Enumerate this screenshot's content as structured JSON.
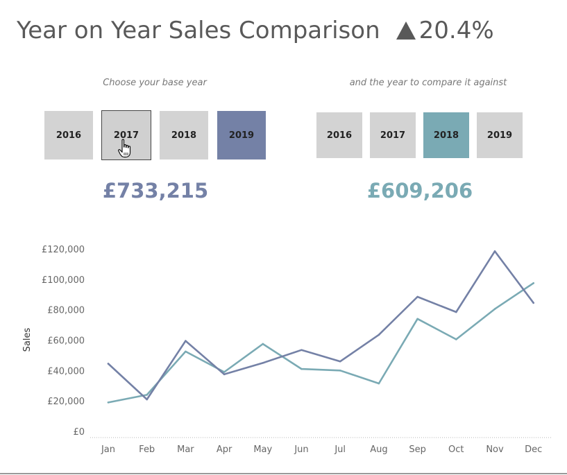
{
  "header": {
    "title": "Year on Year Sales Comparison",
    "change_icon": "triangle-up-icon",
    "change_value": "20.4%"
  },
  "base_selector": {
    "caption": "Choose your base year",
    "options": [
      "2016",
      "2017",
      "2018",
      "2019"
    ],
    "selected": "2019",
    "hovered": "2017",
    "total": "£733,215"
  },
  "compare_selector": {
    "caption": "and the year to compare it against",
    "options": [
      "2016",
      "2017",
      "2018",
      "2019"
    ],
    "selected": "2018",
    "total": "£609,206"
  },
  "colors": {
    "base": "#7481a6",
    "compare": "#7aaab4",
    "button": "#d3d3d3",
    "title": "#595959"
  },
  "chart_data": {
    "type": "line",
    "title": "",
    "xlabel": "",
    "ylabel": "Sales",
    "categories": [
      "Jan",
      "Feb",
      "Mar",
      "Apr",
      "May",
      "Jun",
      "Jul",
      "Aug",
      "Sep",
      "Oct",
      "Nov",
      "Dec"
    ],
    "ylim": [
      0,
      130000
    ],
    "yticks": [
      0,
      20000,
      40000,
      60000,
      80000,
      100000,
      120000
    ],
    "ytick_labels": [
      "£0",
      "£20,000",
      "£40,000",
      "£60,000",
      "£80,000",
      "£100,000",
      "£120,000"
    ],
    "grid": false,
    "series": [
      {
        "year": "2019",
        "role": "base",
        "color": "#7481a6",
        "values": [
          44500,
          21000,
          59500,
          37500,
          45000,
          53500,
          46000,
          63500,
          88500,
          78500,
          118500,
          84500
        ]
      },
      {
        "year": "2018",
        "role": "compare",
        "color": "#7aaab4",
        "values": [
          19000,
          24000,
          52500,
          39000,
          57500,
          41000,
          40000,
          31500,
          74000,
          60500,
          80500,
          97500
        ]
      }
    ]
  }
}
